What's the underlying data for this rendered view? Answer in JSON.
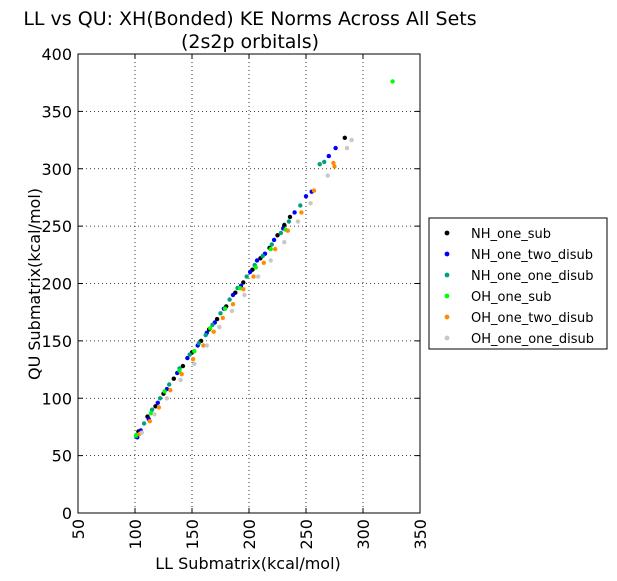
{
  "chart_data": {
    "type": "scatter",
    "title": "LL vs QU: XH(Bonded) KE Norms Across All Sets",
    "subtitle": "(2s2p orbitals)",
    "xlabel": "LL Submatrix(kcal/mol)",
    "ylabel": "QU Submatrix(kcal/mol)",
    "xlim": [
      50,
      350
    ],
    "ylim": [
      0,
      400
    ],
    "xticks": [
      50,
      100,
      150,
      200,
      250,
      300,
      350
    ],
    "yticks": [
      0,
      50,
      100,
      150,
      200,
      250,
      300,
      350,
      400
    ],
    "grid": true,
    "legend_position": "outside-right",
    "series": [
      {
        "name": "NH_one_sub",
        "color": "#000000",
        "points": [
          [
            103,
            71
          ],
          [
            111,
            84
          ],
          [
            118,
            93
          ],
          [
            125,
            104
          ],
          [
            134,
            117
          ],
          [
            142,
            128
          ],
          [
            150,
            140
          ],
          [
            158,
            150
          ],
          [
            165,
            160
          ],
          [
            172,
            169
          ],
          [
            180,
            180
          ],
          [
            188,
            192
          ],
          [
            195,
            201
          ],
          [
            203,
            212
          ],
          [
            210,
            222
          ],
          [
            218,
            231
          ],
          [
            225,
            242
          ],
          [
            231,
            251
          ],
          [
            236,
            258
          ],
          [
            284,
            327
          ]
        ]
      },
      {
        "name": "NH_one_two_disub",
        "color": "#0000ff",
        "points": [
          [
            102,
            66
          ],
          [
            105,
            72
          ],
          [
            112,
            82
          ],
          [
            120,
            96
          ],
          [
            128,
            108
          ],
          [
            137,
            122
          ],
          [
            146,
            135
          ],
          [
            155,
            146
          ],
          [
            163,
            157
          ],
          [
            170,
            166
          ],
          [
            178,
            178
          ],
          [
            186,
            190
          ],
          [
            193,
            198
          ],
          [
            201,
            210
          ],
          [
            207,
            220
          ],
          [
            214,
            226
          ],
          [
            222,
            238
          ],
          [
            230,
            248
          ],
          [
            240,
            262
          ],
          [
            250,
            276
          ],
          [
            255,
            280
          ],
          [
            270,
            311
          ],
          [
            276,
            318
          ]
        ]
      },
      {
        "name": "NH_one_one_disub",
        "color": "#00a080",
        "points": [
          [
            101,
            67
          ],
          [
            108,
            78
          ],
          [
            115,
            90
          ],
          [
            122,
            100
          ],
          [
            130,
            112
          ],
          [
            139,
            126
          ],
          [
            148,
            138
          ],
          [
            156,
            148
          ],
          [
            162,
            155
          ],
          [
            168,
            164
          ],
          [
            175,
            174
          ],
          [
            183,
            186
          ],
          [
            190,
            196
          ],
          [
            198,
            206
          ],
          [
            205,
            216
          ],
          [
            212,
            224
          ],
          [
            220,
            234
          ],
          [
            228,
            244
          ],
          [
            235,
            254
          ],
          [
            245,
            268
          ],
          [
            262,
            304
          ],
          [
            266,
            306
          ]
        ]
      },
      {
        "name": "OH_one_sub",
        "color": "#00ff00",
        "points": [
          [
            101,
            68
          ],
          [
            114,
            87
          ],
          [
            126,
            106
          ],
          [
            139,
            124
          ],
          [
            152,
            141
          ],
          [
            166,
            161
          ],
          [
            179,
            178
          ],
          [
            192,
            196
          ],
          [
            206,
            214
          ],
          [
            219,
            230
          ],
          [
            232,
            247
          ],
          [
            326,
            376
          ]
        ]
      },
      {
        "name": "OH_one_two_disub",
        "color": "#ff8c00",
        "points": [
          [
            104,
            69
          ],
          [
            113,
            80
          ],
          [
            121,
            92
          ],
          [
            131,
            107
          ],
          [
            141,
            121
          ],
          [
            151,
            134
          ],
          [
            160,
            146
          ],
          [
            169,
            158
          ],
          [
            177,
            170
          ],
          [
            186,
            182
          ],
          [
            195,
            195
          ],
          [
            204,
            206
          ],
          [
            213,
            218
          ],
          [
            223,
            230
          ],
          [
            234,
            246
          ],
          [
            246,
            262
          ],
          [
            257,
            281
          ],
          [
            274,
            305
          ],
          [
            275,
            302
          ]
        ]
      },
      {
        "name": "OH_one_one_disub",
        "color": "#c8c8c8",
        "points": [
          [
            106,
            70
          ],
          [
            117,
            86
          ],
          [
            128,
            100
          ],
          [
            140,
            116
          ],
          [
            152,
            130
          ],
          [
            163,
            146
          ],
          [
            174,
            162
          ],
          [
            185,
            176
          ],
          [
            196,
            190
          ],
          [
            208,
            206
          ],
          [
            219,
            220
          ],
          [
            231,
            236
          ],
          [
            243,
            254
          ],
          [
            254,
            270
          ],
          [
            269,
            294
          ],
          [
            286,
            318
          ],
          [
            290,
            325
          ]
        ]
      }
    ]
  }
}
